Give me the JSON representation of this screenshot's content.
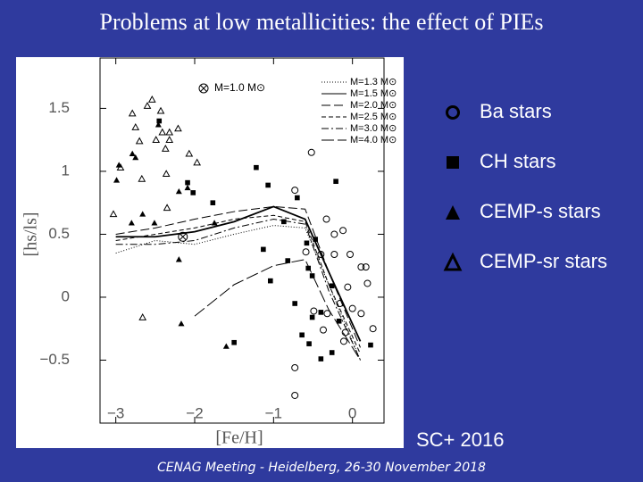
{
  "slide": {
    "title": "Problems at low metallicities: the effect of PIEs",
    "credit": "SC+ 2016",
    "footer": "CENAG Meeting - Heidelberg, 26-30 November 2018"
  },
  "chart_data": {
    "type": "scatter",
    "x_label": "[Fe/H]",
    "y_label": "[hs/ls]",
    "xlim": [
      -3.2,
      0.4
    ],
    "ylim": [
      -1.0,
      1.9
    ],
    "xticks": [
      {
        "value": -3,
        "label": "−3"
      },
      {
        "value": -2,
        "label": "−2"
      },
      {
        "value": -1,
        "label": "−1"
      },
      0
    ],
    "yticks": [
      {
        "value": -0.5,
        "label": "−0.5"
      },
      0,
      0.5,
      1,
      1.5
    ],
    "series": [
      {
        "name": "Ba stars",
        "marker": "open-circle",
        "color": "#000000",
        "x": [
          -0.52,
          -0.73,
          -0.33,
          -0.23,
          -0.12,
          -0.4,
          -0.23,
          -0.03,
          0.11,
          0.17,
          0.19,
          -0.06,
          -0.16,
          0.0,
          0.11,
          -0.49,
          -0.32,
          -0.37,
          -0.09,
          0.26,
          -0.11,
          -0.73,
          -0.73,
          -0.59
        ],
        "values": [
          1.15,
          0.85,
          0.62,
          0.5,
          0.53,
          0.34,
          0.34,
          0.34,
          0.24,
          0.24,
          0.11,
          0.08,
          -0.05,
          -0.09,
          -0.13,
          -0.11,
          -0.13,
          -0.26,
          -0.28,
          -0.25,
          -0.35,
          -0.56,
          -0.78,
          0.36
        ]
      },
      {
        "name": "CH stars",
        "marker": "filled-square",
        "color": "#000000",
        "x": [
          -2.45,
          -1.22,
          -2.09,
          -2.02,
          -1.77,
          -1.07,
          -0.21,
          -0.7,
          -0.87,
          -0.58,
          -1.13,
          -0.82,
          -0.56,
          -0.51,
          -0.26,
          -1.04,
          -0.73,
          -0.51,
          -0.4,
          -0.17,
          -0.64,
          -0.55,
          -1.5,
          -0.4,
          -0.26,
          0.23,
          -0.47
        ],
        "values": [
          1.4,
          1.03,
          0.91,
          0.83,
          0.75,
          0.89,
          0.92,
          0.79,
          0.6,
          0.43,
          0.38,
          0.29,
          0.23,
          0.17,
          0.09,
          0.13,
          -0.05,
          -0.16,
          -0.12,
          -0.19,
          -0.3,
          -0.37,
          -0.36,
          -0.49,
          -0.44,
          -0.38,
          0.46
        ]
      },
      {
        "name": "CEMP-s stars",
        "marker": "filled-triangle",
        "color": "#000000",
        "x": [
          -2.79,
          -2.96,
          -2.75,
          -2.46,
          -2.66,
          -2.51,
          -2.8,
          -2.2,
          -2.09,
          -2.2,
          -1.75,
          -2.17,
          -1.6,
          -2.99
        ],
        "values": [
          1.14,
          1.05,
          1.11,
          1.37,
          0.66,
          0.59,
          0.59,
          0.84,
          0.87,
          0.3,
          0.59,
          -0.21,
          -0.39,
          0.93
        ]
      },
      {
        "name": "CEMP-sr stars",
        "marker": "open-triangle",
        "color": "#000000",
        "x": [
          -2.79,
          -2.6,
          -2.54,
          -2.43,
          -2.75,
          -2.7,
          -2.41,
          -2.32,
          -2.32,
          -2.21,
          -2.49,
          -2.37,
          -2.36,
          -2.67,
          -2.94,
          -3.03,
          -2.35,
          -2.07,
          -1.97,
          -2.66
        ],
        "values": [
          1.46,
          1.52,
          1.57,
          1.48,
          1.35,
          1.24,
          1.31,
          1.31,
          1.25,
          1.34,
          1.25,
          1.18,
          0.98,
          0.94,
          1.03,
          0.66,
          0.71,
          1.14,
          1.07,
          -0.16
        ]
      }
    ],
    "reference_point": {
      "label": "M=1.0 M⊙",
      "x": -2.15,
      "y": 0.48
    },
    "lines": [
      {
        "name": "M=1.3 M⊙",
        "dash": "1 2",
        "x": [
          -3,
          -2.5,
          -2,
          -1.5,
          -1,
          -0.6,
          -0.3,
          0.1
        ],
        "values": [
          0.35,
          0.45,
          0.42,
          0.5,
          0.57,
          0.55,
          0.1,
          -0.5
        ]
      },
      {
        "name": "M=1.5 M⊙",
        "dash": "none",
        "x": [
          -3,
          -2.5,
          -2,
          -1.5,
          -1,
          -0.6,
          -0.3,
          0.1
        ],
        "values": [
          0.48,
          0.48,
          0.52,
          0.6,
          0.72,
          0.62,
          0.2,
          -0.35
        ]
      },
      {
        "name": "M=2.0 M⊙",
        "dash": "10 4",
        "x": [
          -3,
          -2.5,
          -2,
          -1.5,
          -1,
          -0.6,
          -0.3,
          0.1
        ],
        "values": [
          0.5,
          0.55,
          0.62,
          0.68,
          0.72,
          0.7,
          0.2,
          -0.4
        ]
      },
      {
        "name": "M=2.5 M⊙",
        "dash": "5 3",
        "x": [
          -3,
          -2.5,
          -2,
          -1.5,
          -1,
          -0.6,
          -0.3,
          0.1
        ],
        "values": [
          0.45,
          0.5,
          0.55,
          0.62,
          0.65,
          0.6,
          0.1,
          -0.45
        ]
      },
      {
        "name": "M=3.0 M⊙",
        "dash": "8 3 2 3",
        "x": [
          -3,
          -2.5,
          -2,
          -1.5,
          -1,
          -0.6,
          -0.3,
          0.1
        ],
        "values": [
          0.42,
          0.42,
          0.45,
          0.55,
          0.62,
          0.58,
          0.05,
          -0.5
        ]
      },
      {
        "name": "M=4.0 M⊙",
        "dash": "14 4",
        "x": [
          -3,
          -2.5,
          -2,
          -1.5,
          -1,
          -0.6,
          -0.3,
          0.1
        ],
        "values": [
          null,
          null,
          -0.15,
          0.1,
          0.25,
          0.3,
          -0.1,
          -0.5
        ]
      }
    ]
  }
}
